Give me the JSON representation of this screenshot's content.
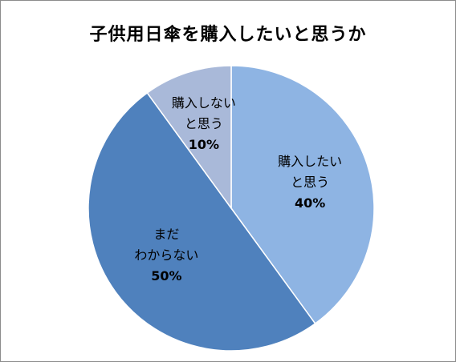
{
  "chart_data": {
    "type": "pie",
    "title": "子供用日傘を購入したいと思うか",
    "unit": "%",
    "legend": "none",
    "start": "12 o'clock, clockwise",
    "slices": [
      {
        "label_lines": [
          "購入したい",
          "と思う"
        ],
        "value": 40,
        "pct_label": "40%",
        "color": "#8eb4e3"
      },
      {
        "label_lines": [
          "まだ",
          "わからない"
        ],
        "value": 50,
        "pct_label": "50%",
        "color": "#4f81bd"
      },
      {
        "label_lines": [
          "購入しない",
          "と思う"
        ],
        "value": 10,
        "pct_label": "10%",
        "color": "#a9b9d9"
      }
    ]
  }
}
